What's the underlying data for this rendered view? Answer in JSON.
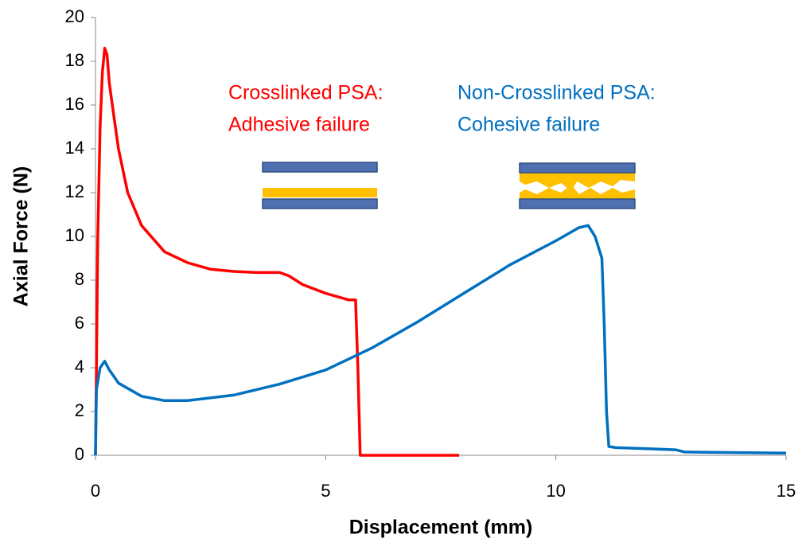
{
  "chart_data": {
    "type": "line",
    "xlabel": "Displacement (mm)",
    "ylabel": "Axial Force (N)",
    "xlim": [
      0,
      15
    ],
    "xticks": [
      0,
      5,
      10,
      15
    ],
    "ylim": [
      0,
      20
    ],
    "yticks": [
      0,
      2,
      4,
      6,
      8,
      10,
      12,
      14,
      16,
      18,
      20
    ],
    "series": [
      {
        "color": "#ff0000",
        "x": [
          0,
          0.02,
          0.05,
          0.1,
          0.15,
          0.2,
          0.25,
          0.3,
          0.4,
          0.5,
          0.7,
          1,
          1.5,
          2,
          2.5,
          3,
          3.5,
          4,
          4.2,
          4.5,
          5,
          5.5,
          5.65,
          5.7,
          5.75,
          6,
          7.9
        ],
        "values": [
          0,
          4,
          10,
          15,
          17.5,
          18.6,
          18.3,
          17,
          15.5,
          14,
          12,
          10.5,
          9.3,
          8.8,
          8.5,
          8.4,
          8.35,
          8.35,
          8.2,
          7.8,
          7.4,
          7.1,
          7.1,
          4,
          0,
          0,
          0
        ]
      },
      {
        "color": "#0070c0",
        "x": [
          0,
          0.02,
          0.1,
          0.2,
          0.3,
          0.5,
          1,
          1.5,
          2,
          3,
          4,
          5,
          6,
          7,
          8,
          9,
          10,
          10.5,
          10.7,
          10.85,
          11,
          11.05,
          11.1,
          11.15,
          11.3,
          12,
          12.6,
          12.8,
          15
        ],
        "values": [
          0,
          3,
          4,
          4.3,
          3.9,
          3.3,
          2.7,
          2.5,
          2.5,
          2.75,
          3.25,
          3.9,
          4.9,
          6.1,
          7.4,
          8.7,
          9.8,
          10.4,
          10.5,
          10.0,
          9,
          6,
          2,
          0.4,
          0.35,
          0.3,
          0.25,
          0.15,
          0.1
        ]
      }
    ],
    "annotations": [
      {
        "text": "Crosslinked PSA:",
        "color": "#ff0000"
      },
      {
        "text": "Adhesive failure",
        "color": "#ff0000"
      },
      {
        "text": "Non-Crosslinked PSA:",
        "color": "#0070c0"
      },
      {
        "text": "Cohesive failure",
        "color": "#0070c0"
      }
    ]
  }
}
